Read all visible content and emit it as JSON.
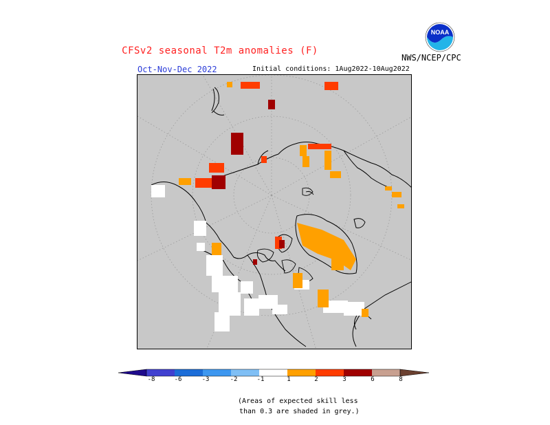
{
  "header": {
    "title": "CFSv2 seasonal T2m anomalies (F)",
    "agency": "NWS/NCEP/CPC",
    "logo_text": "NOAA",
    "season": "Oct-Nov-Dec 2022",
    "initial_conditions": "Initial conditions: 1Aug2022-10Aug2022"
  },
  "map": {
    "projection": "north polar stereographic",
    "background_color": "#c8c8c8",
    "grid": "dotted latitude circles and meridians"
  },
  "legend": {
    "units": "F",
    "bins": [
      {
        "color": "#1e0a8c",
        "range": "< -8"
      },
      {
        "color": "#4040d0",
        "range": "-8 to -6"
      },
      {
        "color": "#1c6dd8",
        "range": "-6 to -3"
      },
      {
        "color": "#3d97f0",
        "range": "-3 to -2"
      },
      {
        "color": "#7fbff5",
        "range": "-2 to -1"
      },
      {
        "color": "#ffffff",
        "range": "-1 to 1"
      },
      {
        "color": "#ffa000",
        "range": "1 to 2"
      },
      {
        "color": "#ff3c00",
        "range": "2 to 3"
      },
      {
        "color": "#a00000",
        "range": "3 to 6"
      },
      {
        "color": "#c8a090",
        "range": "6 to 8"
      },
      {
        "color": "#6b4030",
        "range": "> 8"
      }
    ],
    "tick_labels": [
      "-8",
      "-6",
      "-3",
      "-2",
      "-1",
      "1",
      "2",
      "3",
      "6",
      "8"
    ]
  },
  "footnote": {
    "line1": "(Areas of expected skill less",
    "line2": "than 0.3 are shaded in grey.)"
  }
}
